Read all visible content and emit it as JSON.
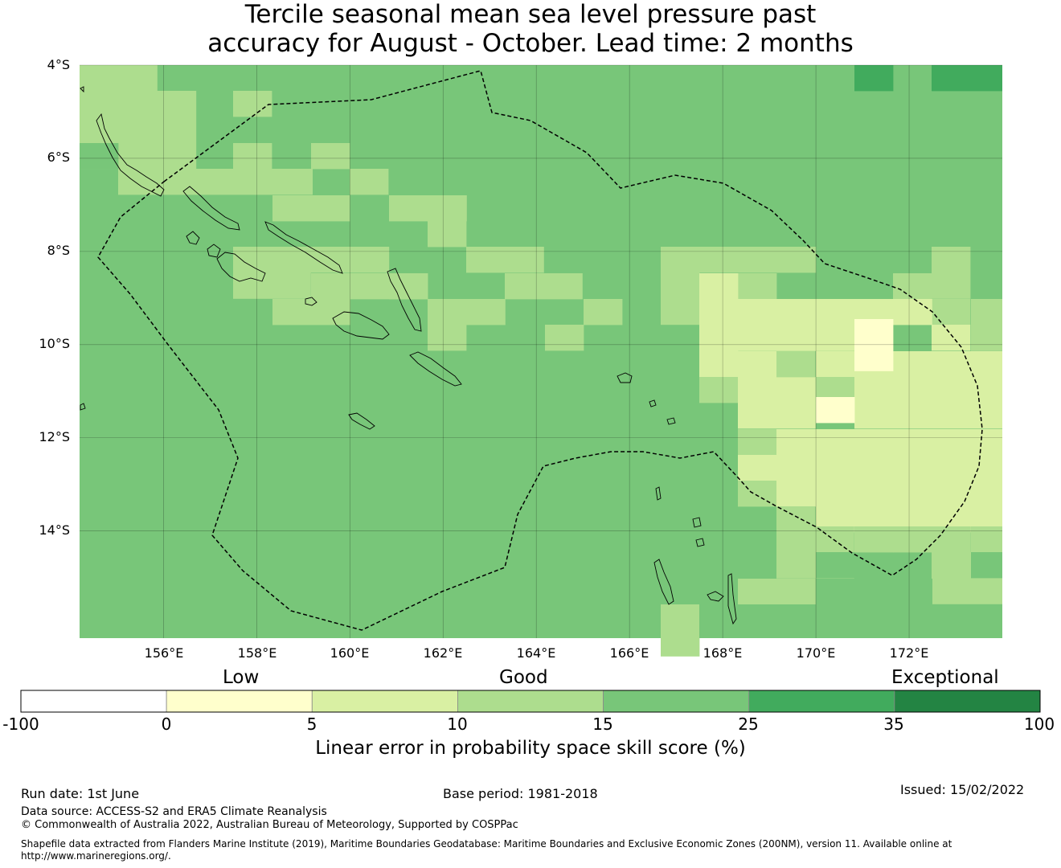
{
  "title": {
    "line1": "Tercile seasonal mean sea level pressure past",
    "line2": "accuracy for August - October. Lead time: 2 months"
  },
  "map": {
    "lon_range": [
      154.2,
      174
    ],
    "lat_range": [
      -16.3,
      -4
    ],
    "lat_ticks": [
      "4°S",
      "6°S",
      "8°S",
      "10°S",
      "12°S",
      "14°S"
    ],
    "lon_ticks": [
      "156°E",
      "158°E",
      "160°E",
      "162°E",
      "164°E",
      "166°E",
      "168°E",
      "170°E",
      "172°E"
    ],
    "grid": true,
    "base_category": 4,
    "cell_size_deg": 0.83,
    "cells": [
      {
        "col": 0,
        "row": 0,
        "w": 2,
        "h": 1,
        "c": 3
      },
      {
        "col": 2,
        "row": 1,
        "w": 1,
        "h": 2,
        "c": 3
      },
      {
        "col": 1,
        "row": 1,
        "w": 1,
        "h": 2,
        "c": 3
      },
      {
        "col": 0,
        "row": 1,
        "w": 1,
        "h": 1,
        "c": 3
      },
      {
        "col": 1,
        "row": 3,
        "w": 2,
        "h": 1,
        "c": 3
      },
      {
        "col": 3,
        "row": 3,
        "w": 1,
        "h": 1,
        "c": 3
      },
      {
        "col": 4,
        "row": 3,
        "w": 1,
        "h": 1,
        "c": 3
      },
      {
        "col": 5,
        "row": 3,
        "w": 1,
        "h": 1,
        "c": 3
      },
      {
        "col": 7,
        "row": 3,
        "w": 1,
        "h": 1,
        "c": 3
      },
      {
        "col": 8,
        "row": 3,
        "w": 1,
        "h": 1,
        "c": 3
      },
      {
        "col": 4,
        "row": 2,
        "w": 1,
        "h": 1,
        "c": 3
      },
      {
        "col": 6,
        "row": 2,
        "w": 1,
        "h": 1,
        "c": 3
      },
      {
        "col": 5,
        "row": 1,
        "w": 1,
        "h": 1,
        "c": 3
      },
      {
        "col": 6,
        "row": 4,
        "w": 1,
        "h": 1,
        "c": 3
      },
      {
        "col": 8,
        "row": 5,
        "w": 2,
        "h": 1,
        "c": 3
      },
      {
        "col": 9,
        "row": 4,
        "w": 1,
        "h": 1,
        "c": 3
      },
      {
        "col": 10,
        "row": 4,
        "w": 1,
        "h": 1,
        "c": 3
      },
      {
        "col": 2,
        "row": 6,
        "w": 2,
        "h": 1,
        "c": 3
      },
      {
        "col": 4,
        "row": 7,
        "w": 2,
        "h": 1,
        "c": 3
      },
      {
        "col": 7,
        "row": 6,
        "w": 1,
        "h": 1,
        "c": 3
      },
      {
        "col": 9,
        "row": 7,
        "w": 1,
        "h": 2,
        "c": 3
      },
      {
        "col": 10,
        "row": 8,
        "w": 1,
        "h": 1,
        "c": 3
      },
      {
        "col": 10,
        "row": 6,
        "w": 1,
        "h": 1,
        "c": 3
      },
      {
        "col": 11,
        "row": 7,
        "w": 1,
        "h": 1,
        "c": 3
      },
      {
        "col": 12,
        "row": 7,
        "w": 1,
        "h": 1,
        "c": 3
      },
      {
        "col": 13,
        "row": 7,
        "w": 1,
        "h": 1,
        "c": 3
      },
      {
        "col": 12,
        "row": 6,
        "w": 2,
        "h": 1,
        "c": 3
      },
      {
        "col": 11,
        "row": 5,
        "w": 1,
        "h": 1,
        "c": 3
      },
      {
        "col": 12,
        "row": 5,
        "w": 1,
        "h": 1,
        "c": 3
      },
      {
        "col": 15,
        "row": 8,
        "w": 1,
        "h": 1,
        "c": 3
      },
      {
        "col": 12,
        "row": 8,
        "w": 1,
        "h": 1,
        "c": 3
      },
      {
        "col": 16,
        "row": 6,
        "w": 1,
        "h": 1,
        "c": 3
      },
      {
        "col": 15,
        "row": 9,
        "w": 1,
        "h": 1,
        "c": 3
      },
      {
        "col": 17,
        "row": 9,
        "w": 1,
        "h": 1,
        "c": 3
      },
      {
        "col": 18,
        "row": 10,
        "w": 1,
        "h": 1,
        "c": 3
      },
      {
        "col": 17,
        "row": 7,
        "w": 1,
        "h": 1,
        "c": 3
      },
      {
        "col": 16,
        "row": 7,
        "w": 1,
        "h": 1,
        "c": 3
      },
      {
        "col": 16,
        "row": 8,
        "w": 1,
        "h": 1,
        "c": 3
      },
      {
        "col": 17,
        "row": 8,
        "w": 1,
        "h": 1,
        "c": 3
      },
      {
        "col": 18,
        "row": 8,
        "w": 1,
        "h": 1,
        "c": 3
      },
      {
        "col": 22,
        "row": 8,
        "w": 1,
        "h": 1,
        "c": 3
      },
      {
        "col": 23,
        "row": 8,
        "w": 1,
        "h": 1,
        "c": 3
      },
      {
        "col": 24,
        "row": 8,
        "w": 1,
        "h": 1,
        "c": 3
      },
      {
        "col": 22,
        "row": 9,
        "w": 1,
        "h": 1,
        "c": 3
      },
      {
        "col": 23,
        "row": 9,
        "w": 1,
        "h": 1,
        "c": 3
      },
      {
        "col": 15,
        "row": 10,
        "w": 2,
        "h": 1,
        "c": 3
      },
      {
        "col": 13,
        "row": 9,
        "w": 1,
        "h": 1,
        "c": 3
      },
      {
        "col": 15,
        "row": 11,
        "w": 1,
        "h": 1,
        "c": 3
      },
      {
        "col": 16,
        "row": 11,
        "w": 1,
        "h": 1,
        "c": 3
      },
      {
        "col": 16,
        "row": 12,
        "w": 1,
        "h": 1,
        "c": 3
      },
      {
        "col": 17,
        "row": 12,
        "w": 1,
        "h": 1,
        "c": 3
      },
      {
        "col": 19,
        "row": 12,
        "w": 2,
        "h": 1,
        "c": 3
      },
      {
        "col": 21,
        "row": 12,
        "w": 3,
        "h": 1,
        "c": 3
      },
      {
        "col": 23,
        "row": 11,
        "w": 1,
        "h": 1,
        "c": 3
      },
      {
        "col": 20,
        "row": 13,
        "w": 1,
        "h": 1,
        "c": 3
      },
      {
        "col": 24,
        "row": 13,
        "w": 1,
        "h": 1,
        "c": 3
      },
      {
        "col": 19,
        "row": 14,
        "w": 1,
        "h": 1,
        "c": 3
      },
      {
        "col": 20,
        "row": 14,
        "w": 1,
        "h": 1,
        "c": 3
      },
      {
        "col": 19,
        "row": 16,
        "w": 2,
        "h": 1,
        "c": 3
      },
      {
        "col": 18,
        "row": 16,
        "w": 1,
        "h": 1,
        "c": 3
      },
      {
        "col": 19,
        "row": 17,
        "w": 1,
        "h": 1,
        "c": 3
      },
      {
        "col": 20,
        "row": 17,
        "w": 2,
        "h": 1,
        "c": 3
      },
      {
        "col": 23,
        "row": 15,
        "w": 2,
        "h": 1,
        "c": 3
      },
      {
        "col": 22,
        "row": 16,
        "w": 1,
        "h": 1,
        "c": 3
      },
      {
        "col": 23,
        "row": 17,
        "w": 2,
        "h": 1,
        "c": 3
      },
      {
        "col": 24,
        "row": 18,
        "w": 1,
        "h": 3,
        "c": 3
      },
      {
        "col": 25,
        "row": 18,
        "w": 1,
        "h": 2,
        "c": 3
      },
      {
        "col": 26,
        "row": 18,
        "w": 1,
        "h": 2,
        "c": 3
      },
      {
        "col": 27,
        "row": 18,
        "w": 1,
        "h": 1,
        "c": 3
      },
      {
        "col": 22,
        "row": 19,
        "w": 2,
        "h": 2,
        "c": 3
      },
      {
        "col": 26,
        "row": 20,
        "w": 1,
        "h": 1,
        "c": 3
      },
      {
        "col": 22,
        "row": 21,
        "w": 1,
        "h": 1,
        "c": 3
      },
      {
        "col": 17,
        "row": 21,
        "w": 1,
        "h": 1,
        "c": 3
      },
      {
        "col": 17,
        "row": 20,
        "w": 1,
        "h": 1,
        "c": 3
      },
      {
        "col": 18,
        "row": 20,
        "w": 1,
        "h": 1,
        "c": 3
      },
      {
        "col": 14,
        "row": 21,
        "w": 1,
        "h": 1,
        "c": 3
      },
      {
        "col": 13,
        "row": 20,
        "w": 1,
        "h": 1,
        "c": 3
      },
      {
        "col": 12,
        "row": 20,
        "w": 1,
        "h": 1,
        "c": 3
      },
      {
        "col": 13,
        "row": 18,
        "w": 1,
        "h": 1,
        "c": 3
      },
      {
        "col": 14,
        "row": 18,
        "w": 1,
        "h": 1,
        "c": 3
      },
      {
        "col": 12,
        "row": 19,
        "w": 1,
        "h": 1,
        "c": 3
      },
      {
        "col": 15,
        "row": 21,
        "w": 1,
        "h": 1,
        "c": 3
      },
      {
        "col": 15,
        "row": 18,
        "w": 1,
        "h": 1,
        "c": 3
      },
      {
        "col": 16,
        "row": 18,
        "w": 1,
        "h": 1,
        "c": 3
      },
      {
        "col": 16,
        "row": 19,
        "w": 2,
        "h": 1,
        "c": 3
      },
      {
        "col": 27,
        "row": 19,
        "w": 1,
        "h": 1,
        "c": 3
      },
      {
        "col": 25,
        "row": 21,
        "w": 1,
        "h": 1,
        "c": 3
      },
      {
        "col": 26,
        "row": 21,
        "w": 1,
        "h": 1,
        "c": 3
      },
      {
        "col": 27,
        "row": 20,
        "w": 1,
        "h": 2,
        "c": 3
      },
      {
        "col": 28,
        "row": 21,
        "w": 1,
        "h": 1,
        "c": 3
      },
      {
        "col": 29,
        "row": 21,
        "w": 1,
        "h": 1,
        "c": 3
      },
      {
        "col": 30,
        "row": 21,
        "w": 1,
        "h": 1,
        "c": 3
      },
      {
        "col": 31,
        "row": 20,
        "w": 1,
        "h": 1,
        "c": 3
      },
      {
        "col": 32,
        "row": 20,
        "w": 1,
        "h": 1,
        "c": 3
      },
      {
        "col": 33,
        "row": 20,
        "w": 1,
        "h": 1,
        "c": 3
      },
      {
        "col": 34,
        "row": 20,
        "w": 1,
        "h": 1,
        "c": 3
      },
      {
        "col": 35,
        "row": 20,
        "w": 1,
        "h": 1,
        "c": 3
      },
      {
        "col": 34,
        "row": 19,
        "w": 1,
        "h": 1,
        "c": 3
      },
      {
        "col": 33,
        "row": 19,
        "w": 1,
        "h": 1,
        "c": 3
      },
      {
        "col": 36,
        "row": 19,
        "w": 1,
        "h": 1,
        "c": 3
      },
      {
        "col": 37,
        "row": 19,
        "w": 1,
        "h": 1,
        "c": 3
      },
      {
        "col": 38,
        "row": 19,
        "w": 1,
        "h": 1,
        "c": 3
      },
      {
        "col": 39,
        "row": 19,
        "w": 1,
        "h": 1,
        "c": 3
      },
      {
        "col": 40,
        "row": 19,
        "w": 1,
        "h": 1,
        "c": 3
      },
      {
        "col": 41,
        "row": 19,
        "w": 1,
        "h": 1,
        "c": 3
      },
      {
        "col": 42,
        "row": 19,
        "w": 1,
        "h": 1,
        "c": 3
      },
      {
        "col": 43,
        "row": 19,
        "w": 1,
        "h": 1,
        "c": 3
      },
      {
        "col": 44,
        "row": 19,
        "w": 1,
        "h": 1,
        "c": 3
      },
      {
        "col": 45,
        "row": 19,
        "w": 1,
        "h": 1,
        "c": 3
      },
      {
        "col": 46,
        "row": 19,
        "w": 1,
        "h": 1,
        "c": 3
      },
      {
        "col": 47,
        "row": 19,
        "w": 1,
        "h": 1,
        "c": 3
      },
      {
        "col": 36,
        "row": 18,
        "w": 1,
        "h": 1,
        "c": 3
      },
      {
        "col": 35,
        "row": 18,
        "w": 1,
        "h": 1,
        "c": 3
      },
      {
        "col": 37,
        "row": 18,
        "w": 1,
        "h": 1,
        "c": 3
      },
      {
        "col": 38,
        "row": 18,
        "w": 1,
        "h": 1,
        "c": 3
      },
      {
        "col": 39,
        "row": 18,
        "w": 1,
        "h": 1,
        "c": 3
      },
      {
        "col": 40,
        "row": 18,
        "w": 1,
        "h": 1,
        "c": 3
      },
      {
        "col": 41,
        "row": 18,
        "w": 1,
        "h": 1,
        "c": 3
      },
      {
        "col": 42,
        "row": 18,
        "w": 1,
        "h": 1,
        "c": 3
      },
      {
        "col": 43,
        "row": 18,
        "w": 1,
        "h": 1,
        "c": 3
      },
      {
        "col": 44,
        "row": 18,
        "w": 1,
        "h": 1,
        "c": 3
      },
      {
        "col": 45,
        "row": 18,
        "w": 1,
        "h": 1,
        "c": 3
      },
      {
        "col": 46,
        "row": 18,
        "w": 1,
        "h": 1,
        "c": 3
      },
      {
        "col": 47,
        "row": 18,
        "w": 1,
        "h": 1,
        "c": 3
      }
    ]
  },
  "legend": {
    "category_labels": {
      "low": "Low",
      "good": "Good",
      "exceptional": "Exceptional"
    },
    "ticks": [
      "-100",
      "0",
      "5",
      "10",
      "15",
      "25",
      "35",
      "100"
    ],
    "colors": [
      "#ffffff",
      "#ffffcc",
      "#d9f0a3",
      "#addd8e",
      "#78c679",
      "#41ab5d",
      "#238443"
    ],
    "title": "Linear error in probability space skill score (%)"
  },
  "footer": {
    "run_date": "Run date: 1st June",
    "base_period": "Base period: 1981-2018",
    "issued": "Issued: 15/02/2022",
    "data_source": "Data source: ACCESS-S2 and ERA5 Climate Reanalysis",
    "copyright": "© Commonwealth of Australia 2022, Australian Bureau of Meteorology, Supported by COSPPac",
    "shapefile_line1": "Shapefile data extracted from Flanders Marine Institute (2019), Maritime Boundaries Geodatabase: Maritime Boundaries and Exclusive Economic Zones (200NM), version 11. Available online at",
    "shapefile_line2": "http://www.marineregions.org/."
  }
}
